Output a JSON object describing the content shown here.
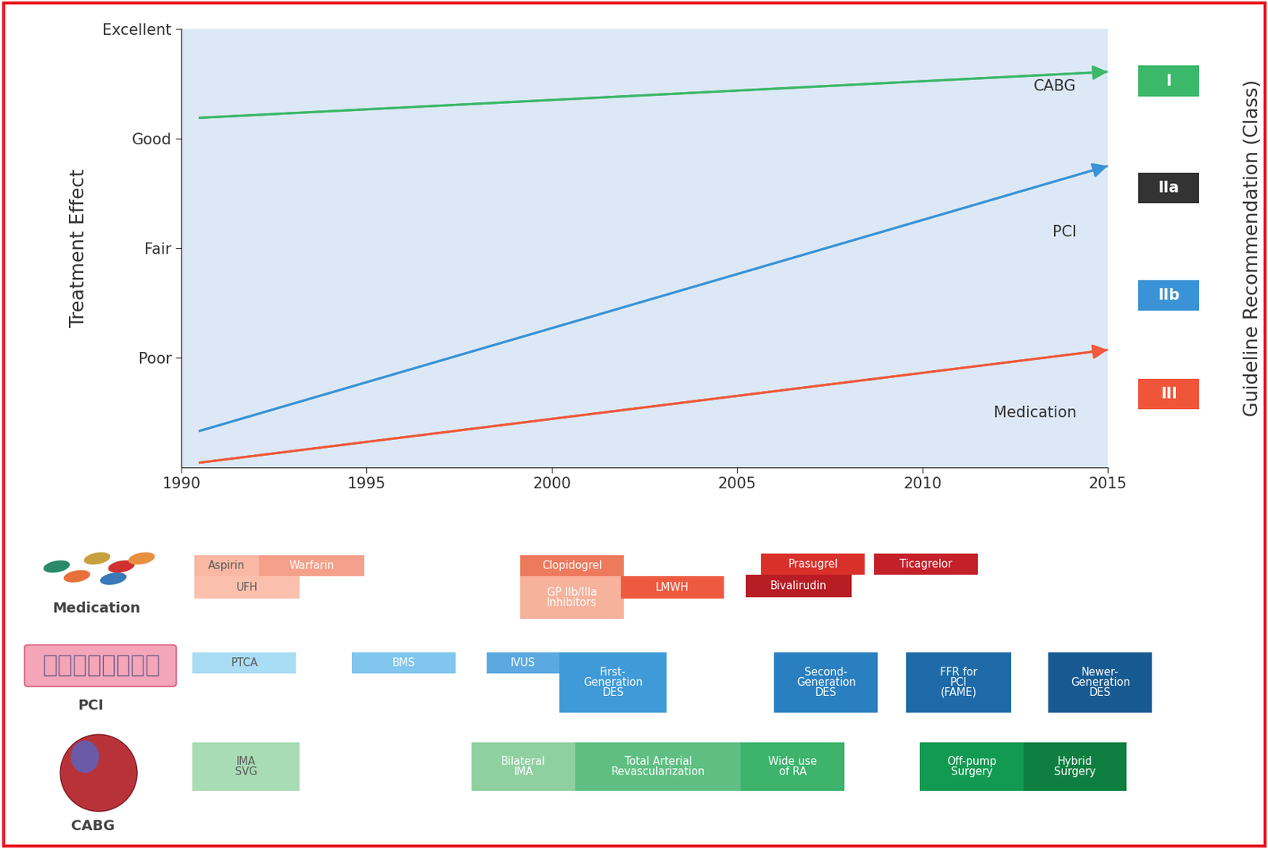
{
  "chart_data": {
    "type": "line",
    "x": [
      1990.5,
      2015
    ],
    "xlim": [
      1990,
      2015
    ],
    "xticks": [
      1990,
      1995,
      2000,
      2005,
      2010,
      2015
    ],
    "ylim": [
      0,
      4
    ],
    "yticks": [
      {
        "value": 1,
        "label": "Poor"
      },
      {
        "value": 2,
        "label": "Fair"
      },
      {
        "value": 3,
        "label": "Good"
      },
      {
        "value": 4,
        "label": "Excellent"
      }
    ],
    "y_label": "Treatment Effect",
    "grid": false,
    "series": [
      {
        "name": "CABG",
        "color": "#3cb86a",
        "values": [
          3.19,
          3.61
        ]
      },
      {
        "name": "PCI",
        "color": "#3a93d6",
        "values": [
          0.33,
          2.75
        ]
      },
      {
        "name": "Medication",
        "color": "#ef5a3c",
        "values": [
          0.04,
          1.07
        ]
      }
    ],
    "guideline_recommendation": {
      "label": "Guideline Recommendation (Class)",
      "classes": [
        {
          "name": "I",
          "color": "#3cb86a"
        },
        {
          "name": "IIa",
          "color": "#333333"
        },
        {
          "name": "IIb",
          "color": "#3a93d6"
        },
        {
          "name": "III",
          "color": "#f0553a"
        }
      ]
    }
  },
  "timeline": {
    "groups": [
      {
        "name": "Medication",
        "items": [
          {
            "label": "Aspirin",
            "start": 1990.35,
            "end": 1992.1,
            "color": "#f9b8a3"
          },
          {
            "label": "Warfarin",
            "start": 1992.1,
            "end": 1994.93,
            "color": "#f4a08a"
          },
          {
            "label": "UFH",
            "start": 1990.35,
            "end": 1993.19,
            "color": "#fbc0ad"
          },
          {
            "label": "Clopidogrel",
            "start": 1999.15,
            "end": 2001.94,
            "color": "#ee7a5e"
          },
          {
            "label": "GP IIb/IIIa\nInhibitors",
            "start": 1999.15,
            "end": 2001.94,
            "color": "#f7b29c"
          },
          {
            "label": "LMWH",
            "start": 2001.86,
            "end": 2004.65,
            "color": "#ee5a40"
          },
          {
            "label": "Prasugrel",
            "start": 2005.65,
            "end": 2008.45,
            "color": "#d9302a"
          },
          {
            "label": "Ticagrelor",
            "start": 2008.7,
            "end": 2011.5,
            "color": "#c4202a"
          },
          {
            "label": "Bivalirudin",
            "start": 2005.24,
            "end": 2008.08,
            "color": "#b81c24"
          }
        ]
      },
      {
        "name": "PCI",
        "items": [
          {
            "label": "PTCA",
            "start": 1990.3,
            "end": 1993.1,
            "color": "#a9dcf5"
          },
          {
            "label": "BMS",
            "start": 1994.6,
            "end": 1997.4,
            "color": "#80c6ee"
          },
          {
            "label": "IVUS",
            "start": 1998.25,
            "end": 2000.2,
            "color": "#5ba9e0"
          },
          {
            "label": "First-\nGeneration\nDES",
            "start": 2000.2,
            "end": 2003.1,
            "color": "#3f9ad8"
          },
          {
            "label": "Second-\nGeneration\nDES",
            "start": 2006.0,
            "end": 2008.8,
            "color": "#2a7fc0"
          },
          {
            "label": "FFR for\nPCI\n(FAME)",
            "start": 2009.56,
            "end": 2012.4,
            "color": "#1e6aa8"
          },
          {
            "label": "Newer-\nGeneration\nDES",
            "start": 2013.4,
            "end": 2016.2,
            "color": "#175a92"
          }
        ]
      },
      {
        "name": "CABG",
        "items": [
          {
            "label": "IMA\nSVG",
            "start": 1990.3,
            "end": 1993.2,
            "color": "#a8dcb5"
          },
          {
            "label": "Bilateral\nIMA",
            "start": 1997.84,
            "end": 2000.63,
            "color": "#8fd0a0"
          },
          {
            "label": "Total Arterial\nRevascularization",
            "start": 2000.63,
            "end": 2005.1,
            "color": "#5fbf82"
          },
          {
            "label": "Wide use\nof RA",
            "start": 2005.1,
            "end": 2007.9,
            "color": "#3db36c"
          },
          {
            "label": "Off-pump\nSurgery",
            "start": 2009.93,
            "end": 2012.73,
            "color": "#139a52"
          },
          {
            "label": "Hybrid\nSurgery",
            "start": 2012.73,
            "end": 2015.5,
            "color": "#0e7f40"
          }
        ]
      }
    ]
  }
}
